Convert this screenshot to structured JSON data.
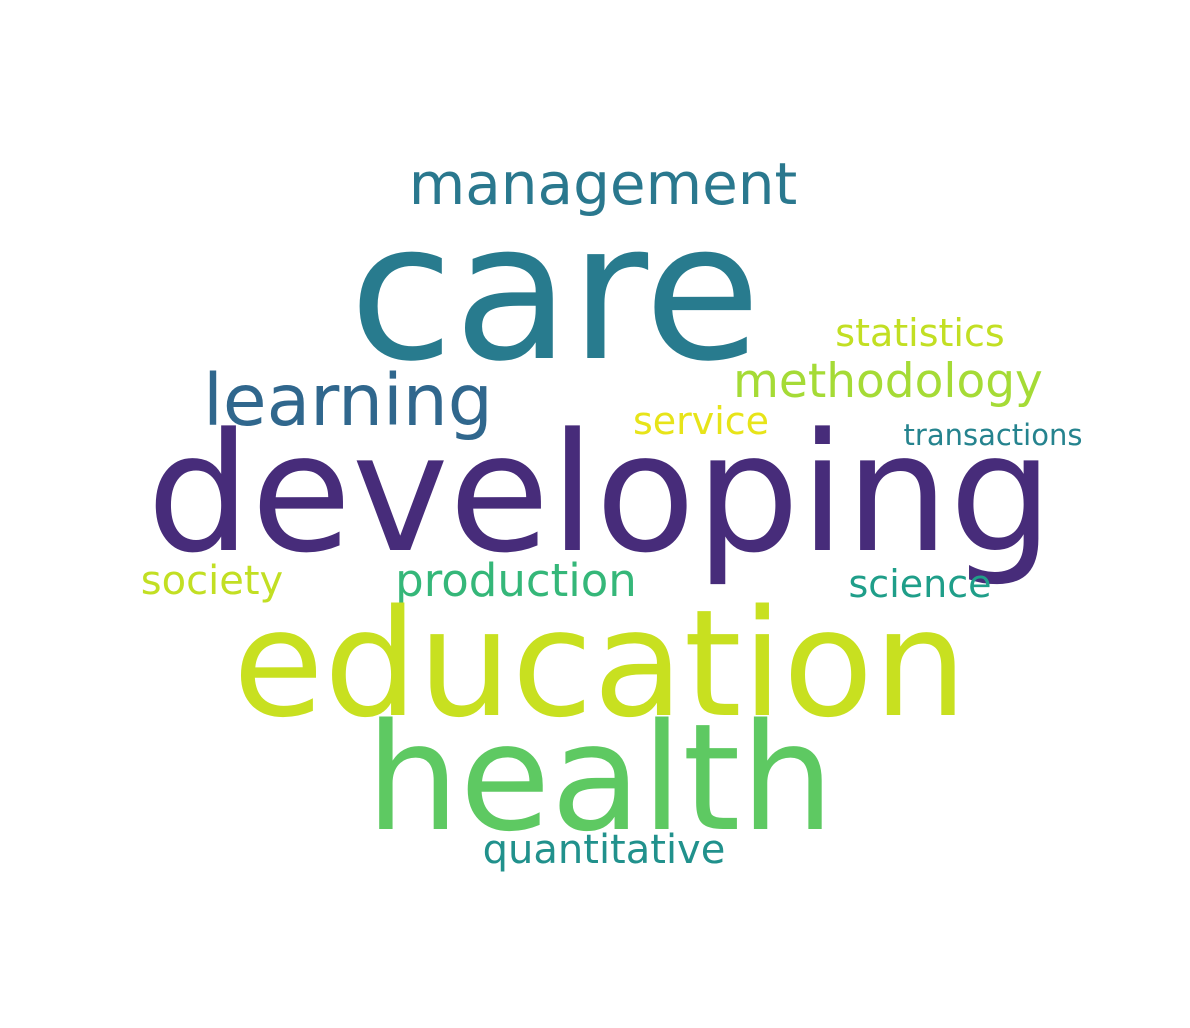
{
  "words": [
    {
      "id": "care",
      "text": "care",
      "color": "#287b8e"
    },
    {
      "id": "developing",
      "text": "developing",
      "color": "#472c7a"
    },
    {
      "id": "education",
      "text": "education",
      "color": "#c8e020"
    },
    {
      "id": "health",
      "text": "health",
      "color": "#5ec962"
    },
    {
      "id": "management",
      "text": "management",
      "color": "#2a788e"
    },
    {
      "id": "learning",
      "text": "learning",
      "color": "#30678d"
    },
    {
      "id": "methodology",
      "text": "methodology",
      "color": "#a5db36"
    },
    {
      "id": "statistics",
      "text": "statistics",
      "color": "#c2df23"
    },
    {
      "id": "service",
      "text": "service",
      "color": "#e7e419"
    },
    {
      "id": "transactions",
      "text": "transactions",
      "color": "#25838e"
    },
    {
      "id": "production",
      "text": "production",
      "color": "#35b779"
    },
    {
      "id": "society",
      "text": "society",
      "color": "#c2df23"
    },
    {
      "id": "science",
      "text": "science",
      "color": "#1f9e89"
    },
    {
      "id": "quantitative",
      "text": "quantitative",
      "color": "#21918c"
    }
  ]
}
